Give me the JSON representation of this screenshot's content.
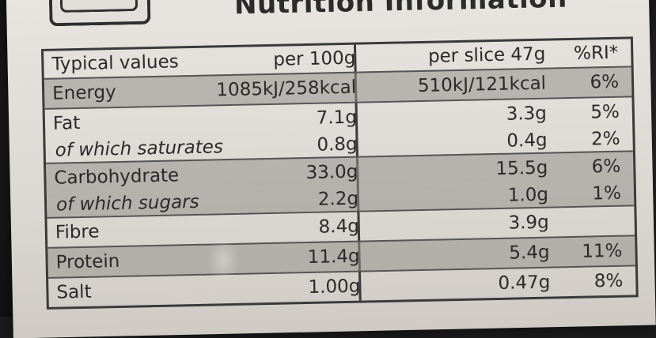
{
  "title": "Nutrition Information",
  "headers": {
    "name": "Typical values",
    "per100": "per 100g",
    "perSlice": "per slice 47g",
    "ri": "%RI*"
  },
  "rows": [
    {
      "name": "Energy",
      "per100": "1085kJ/258kcal",
      "perSlice": "510kJ/121kcal",
      "ri": "6%",
      "italic": false
    },
    {
      "name": "Fat",
      "per100": "7.1g",
      "perSlice": "3.3g",
      "ri": "5%",
      "italic": false
    },
    {
      "name": "of which saturates",
      "per100": "0.8g",
      "perSlice": "0.4g",
      "ri": "2%",
      "italic": true
    },
    {
      "name": "Carbohydrate",
      "per100": "33.0g",
      "perSlice": "15.5g",
      "ri": "6%",
      "italic": false
    },
    {
      "name": "of which sugars",
      "per100": "2.2g",
      "perSlice": "1.0g",
      "ri": "1%",
      "italic": true
    },
    {
      "name": "Fibre",
      "per100": "8.4g",
      "perSlice": "3.9g",
      "ri": "",
      "italic": false
    },
    {
      "name": "Protein",
      "per100": "11.4g",
      "perSlice": "5.4g",
      "ri": "11%",
      "italic": false
    },
    {
      "name": "Salt",
      "per100": "1.00g",
      "perSlice": "0.47g",
      "ri": "8%",
      "italic": false
    }
  ]
}
